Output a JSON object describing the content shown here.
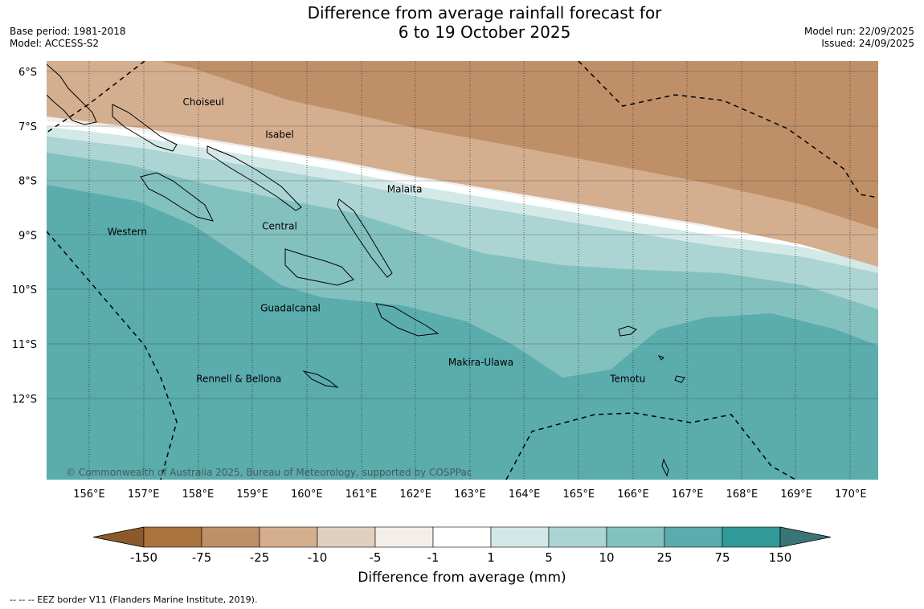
{
  "title": {
    "line1": "Difference from average rainfall forecast for",
    "line2": "6 to 19 October 2025"
  },
  "meta": {
    "base_period": "Base period: 1981-2018",
    "model": "Model: ACCESS-S2",
    "model_run": "Model run: 22/09/2025",
    "issued": "Issued: 24/09/2025"
  },
  "map": {
    "lat_labels": [
      "6°S",
      "7°S",
      "8°S",
      "9°S",
      "10°S",
      "11°S",
      "12°S"
    ],
    "lon_labels": [
      "156°E",
      "157°E",
      "158°E",
      "159°E",
      "160°E",
      "161°E",
      "162°E",
      "163°E",
      "164°E",
      "165°E",
      "166°E",
      "167°E",
      "168°E",
      "169°E",
      "170°E"
    ],
    "place_labels": [
      {
        "name": "Choiseul",
        "lon": 158.1,
        "lat": -6.62
      },
      {
        "name": "Isabel",
        "lon": 159.5,
        "lat": -7.22
      },
      {
        "name": "Malaita",
        "lon": 161.8,
        "lat": -8.22
      },
      {
        "name": "Central",
        "lon": 159.5,
        "lat": -8.9
      },
      {
        "name": "Western",
        "lon": 156.7,
        "lat": -9.0
      },
      {
        "name": "Guadalcanal",
        "lon": 159.7,
        "lat": -10.4
      },
      {
        "name": "Makira-Ulawa",
        "lon": 163.2,
        "lat": -11.4
      },
      {
        "name": "Rennell & Bellona",
        "lon": 158.75,
        "lat": -11.7
      },
      {
        "name": "Temotu",
        "lon": 165.9,
        "lat": -11.7
      }
    ],
    "copyright": "© Commonwealth of Australia 2025, Bureau of Meteorology, supported by COSPPac",
    "land_fill": "#000000"
  },
  "colorbar": {
    "title": "Difference from average (mm)",
    "ticks": [
      "-150",
      "-75",
      "-25",
      "-10",
      "-5",
      "-1",
      "1",
      "5",
      "10",
      "25",
      "75",
      "150"
    ],
    "colors": [
      "#8b5a2b",
      "#ab733e",
      "#bf9068",
      "#d4af8f",
      "#e2d0bf",
      "#f3eee9",
      "#ffffff",
      "#d3e9e8",
      "#abd4d3",
      "#83c1bf",
      "#5aacad",
      "#2f9a98",
      "#3a7575"
    ]
  },
  "footer": {
    "legend": "--  --  -- EEZ border V11 (Flanders Marine Institute, 2019)."
  }
}
